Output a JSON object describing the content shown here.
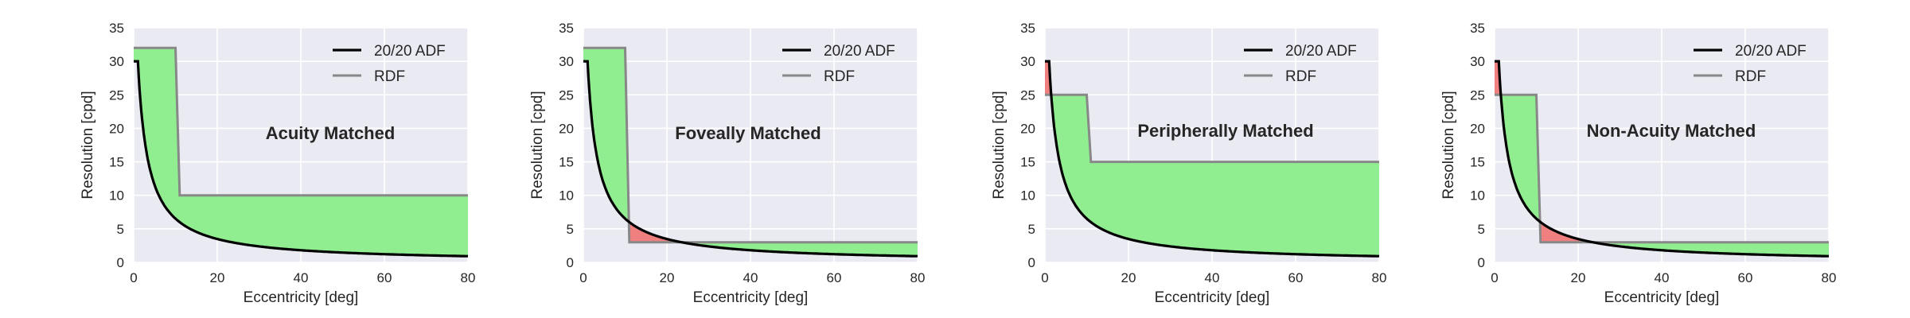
{
  "colors": {
    "plot_background": "#EAEAF2",
    "grid": "#FFFFFF",
    "adf_line": "#000000",
    "rdf_line": "#888888",
    "fill_above": "#90EE90",
    "fill_below": "#F08080"
  },
  "chart_data": [
    {
      "type": "line",
      "title": "Acuity Matched",
      "xlabel": "Eccentricity [deg]",
      "ylabel": "Resolution [cpd]",
      "xlim": [
        0,
        80
      ],
      "ylim": [
        0,
        35
      ],
      "xticks": [
        0,
        20,
        40,
        60,
        80
      ],
      "yticks": [
        0,
        5,
        10,
        15,
        20,
        25,
        30,
        35
      ],
      "grid": true,
      "legend": {
        "position": "top-right",
        "entries": [
          "20/20 ADF",
          "RDF"
        ]
      },
      "series": [
        {
          "name": "20/20 ADF",
          "model": "30 for e<=1, else 30*2.5/(e+1.5)",
          "x": [
            0,
            1,
            2,
            5,
            10,
            20,
            40,
            60,
            80
          ],
          "y": [
            30,
            30,
            21.4,
            11.5,
            6.5,
            3.5,
            1.8,
            1.2,
            0.9
          ]
        },
        {
          "name": "RDF",
          "x": [
            0,
            10,
            11,
            80
          ],
          "y": [
            32,
            32,
            10,
            10
          ]
        }
      ]
    },
    {
      "type": "line",
      "title": "Foveally Matched",
      "xlabel": "Eccentricity [deg]",
      "ylabel": "Resolution [cpd]",
      "xlim": [
        0,
        80
      ],
      "ylim": [
        0,
        35
      ],
      "xticks": [
        0,
        20,
        40,
        60,
        80
      ],
      "yticks": [
        0,
        5,
        10,
        15,
        20,
        25,
        30,
        35
      ],
      "grid": true,
      "legend": {
        "position": "top-right",
        "entries": [
          "20/20 ADF",
          "RDF"
        ]
      },
      "series": [
        {
          "name": "20/20 ADF",
          "model": "30 for e<=1, else 30*2.5/(e+1.5)",
          "x": [
            0,
            1,
            2,
            5,
            10,
            20,
            40,
            60,
            80
          ],
          "y": [
            30,
            30,
            21.4,
            11.5,
            6.5,
            3.5,
            1.8,
            1.2,
            0.9
          ]
        },
        {
          "name": "RDF",
          "x": [
            0,
            10,
            11,
            80
          ],
          "y": [
            32,
            32,
            3,
            3
          ]
        }
      ]
    },
    {
      "type": "line",
      "title": "Peripherally Matched",
      "xlabel": "Eccentricity [deg]",
      "ylabel": "Resolution [cpd]",
      "xlim": [
        0,
        80
      ],
      "ylim": [
        0,
        35
      ],
      "xticks": [
        0,
        20,
        40,
        60,
        80
      ],
      "yticks": [
        0,
        5,
        10,
        15,
        20,
        25,
        30,
        35
      ],
      "grid": true,
      "legend": {
        "position": "top-right",
        "entries": [
          "20/20 ADF",
          "RDF"
        ]
      },
      "series": [
        {
          "name": "20/20 ADF",
          "model": "30 for e<=1, else 30*2.5/(e+1.5)",
          "x": [
            0,
            1,
            2,
            5,
            10,
            20,
            40,
            60,
            80
          ],
          "y": [
            30,
            30,
            21.4,
            11.5,
            6.5,
            3.5,
            1.8,
            1.2,
            0.9
          ]
        },
        {
          "name": "RDF",
          "x": [
            0,
            10,
            11,
            80
          ],
          "y": [
            25,
            25,
            15,
            15
          ]
        }
      ]
    },
    {
      "type": "line",
      "title": "Non-Acuity Matched",
      "xlabel": "Eccentricity [deg]",
      "ylabel": "Resolution [cpd]",
      "xlim": [
        0,
        80
      ],
      "ylim": [
        0,
        35
      ],
      "xticks": [
        0,
        20,
        40,
        60,
        80
      ],
      "yticks": [
        0,
        5,
        10,
        15,
        20,
        25,
        30,
        35
      ],
      "grid": true,
      "legend": {
        "position": "top-right",
        "entries": [
          "20/20 ADF",
          "RDF"
        ]
      },
      "series": [
        {
          "name": "20/20 ADF",
          "model": "30 for e<=1, else 30*2.5/(e+1.5)",
          "x": [
            0,
            1,
            2,
            5,
            10,
            20,
            40,
            60,
            80
          ],
          "y": [
            30,
            30,
            21.4,
            11.5,
            6.5,
            3.5,
            1.8,
            1.2,
            0.9
          ]
        },
        {
          "name": "RDF",
          "x": [
            0,
            10,
            11,
            80
          ],
          "y": [
            25,
            25,
            3,
            3
          ]
        }
      ]
    }
  ]
}
